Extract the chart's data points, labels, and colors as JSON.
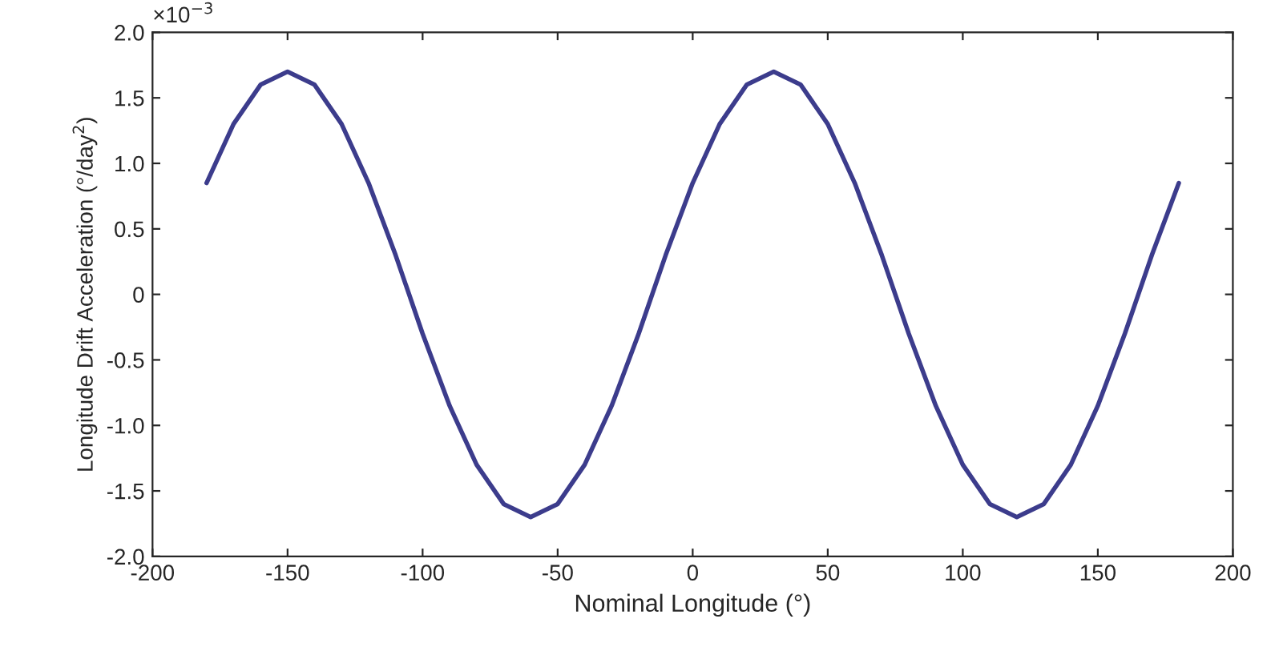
{
  "chart_data": {
    "type": "line",
    "xlabel": "Nominal Longitude (°)",
    "ylabel": "Longitude Drift Acceleration (°/day$^{2}$)",
    "annotations": [
      "×10$^{−3}$"
    ],
    "x": [
      -180,
      -170,
      -160,
      -150,
      -140,
      -130,
      -120,
      -110,
      -100,
      -90,
      -80,
      -70,
      -60,
      -50,
      -40,
      -30,
      -20,
      -10,
      0,
      10,
      20,
      30,
      40,
      50,
      60,
      70,
      80,
      90,
      100,
      110,
      120,
      130,
      140,
      150,
      160,
      170,
      180
    ],
    "series": [
      {
        "color": "#3c3c8c",
        "values": [
          0.85,
          1.3,
          1.6,
          1.7,
          1.6,
          1.3,
          0.85,
          0.3,
          -0.3,
          -0.85,
          -1.3,
          -1.6,
          -1.7,
          -1.6,
          -1.3,
          -0.85,
          -0.3,
          0.3,
          0.85,
          1.3,
          1.6,
          1.7,
          1.6,
          1.3,
          0.85,
          0.3,
          -0.3,
          -0.85,
          -1.3,
          -1.6,
          -1.7,
          -1.6,
          -1.3,
          -0.85,
          -0.3,
          0.3,
          0.85
        ]
      }
    ],
    "xlim": [
      -200,
      200
    ],
    "xticks": [
      -200,
      -150,
      -100,
      -50,
      0,
      50,
      100,
      150,
      200
    ],
    "ylim": [
      -2.0,
      2.0
    ],
    "yticks": [
      {
        "value": -2.0,
        "label": "-2.0"
      },
      {
        "value": -1.5,
        "label": "-1.5"
      },
      {
        "value": -1.0,
        "label": "-1.0"
      },
      {
        "value": -0.5,
        "label": "-0.5"
      },
      0,
      {
        "value": 0.5,
        "label": "0.5"
      },
      {
        "value": 1.0,
        "label": "1.0"
      },
      {
        "value": 1.5,
        "label": "1.5"
      },
      {
        "value": 2.0,
        "label": "2.0"
      }
    ],
    "grid": false,
    "legend": false,
    "line_style": "solid",
    "marker": "none"
  }
}
